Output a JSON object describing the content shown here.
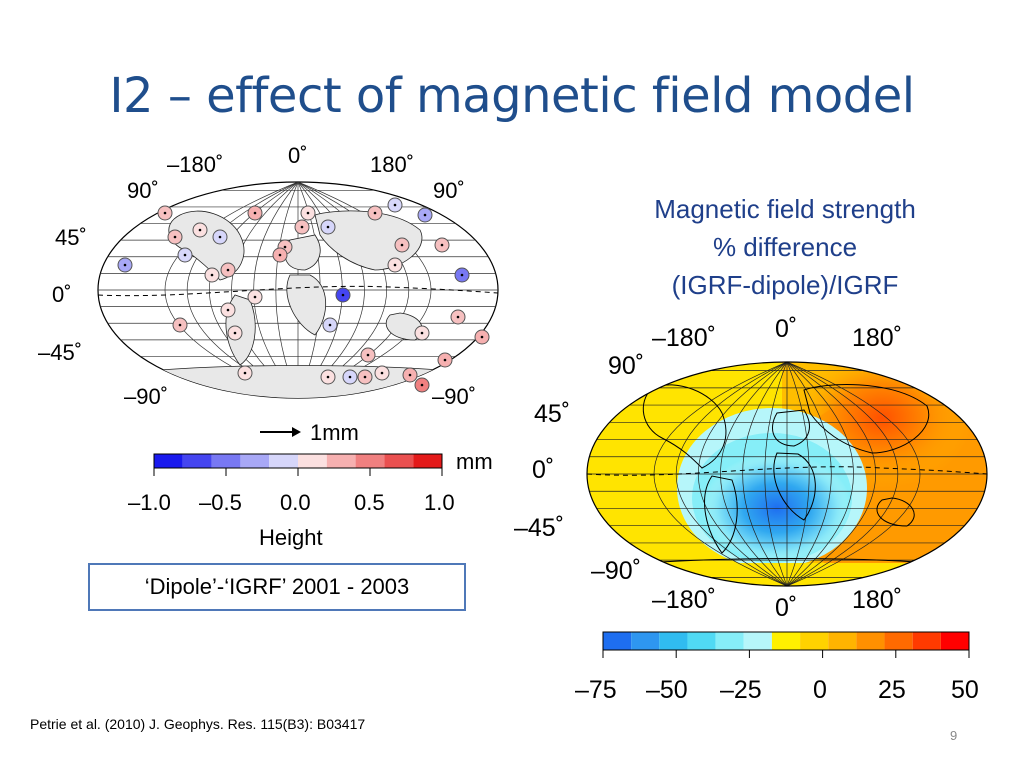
{
  "slide": {
    "title": "I2 – effect of magnetic field model",
    "description_lines": [
      "Magnetic field strength",
      "% difference",
      "(IGRF-dipole)/IGRF"
    ],
    "period_box": "‘Dipole’-‘IGRF’ 2001 - 2003",
    "citation": "Petrie et al. (2010) J. Geophys. Res. 115(B3): B03417",
    "page_number": "9"
  },
  "left_map": {
    "top_labels": [
      "–180˚",
      "0˚",
      "180˚"
    ],
    "left_labels": [
      "90˚",
      "45˚",
      "0˚",
      "–45˚",
      "–90˚"
    ],
    "right_labels": [
      "90˚",
      "–90˚"
    ],
    "scale_arrow_label": "1mm",
    "colorbar": {
      "unit": "mm",
      "ticks": [
        "–1.0",
        "–0.5",
        "0.0",
        "0.5",
        "1.0"
      ],
      "label": "Height",
      "colors": [
        "#1a1aee",
        "#4545f0",
        "#7878f3",
        "#a8a8f6",
        "#d6d6fa",
        "#fbe0e0",
        "#f6b0b0",
        "#f08080",
        "#ea5050",
        "#e41a1a"
      ]
    }
  },
  "right_map": {
    "top_labels": [
      "–180˚",
      "0˚",
      "180˚"
    ],
    "left_labels": [
      "90˚",
      "45˚",
      "0˚",
      "–45˚",
      "–90˚"
    ],
    "bottom_labels": [
      "–180˚",
      "0˚",
      "180˚"
    ],
    "colorbar": {
      "ticks": [
        "–75",
        "–50",
        "–25",
        "0",
        "25",
        "50"
      ],
      "colors": [
        "#1e6ef0",
        "#2e96f0",
        "#30bcf0",
        "#50daf4",
        "#86eef8",
        "#b6f6fa",
        "#fff000",
        "#ffd200",
        "#ffb400",
        "#ff9000",
        "#ff6a00",
        "#ff3a00",
        "#ff0000"
      ]
    }
  },
  "colors": {
    "title": "#1f4e8c",
    "description": "#1f3f8a",
    "box_border": "#4f78b8"
  }
}
